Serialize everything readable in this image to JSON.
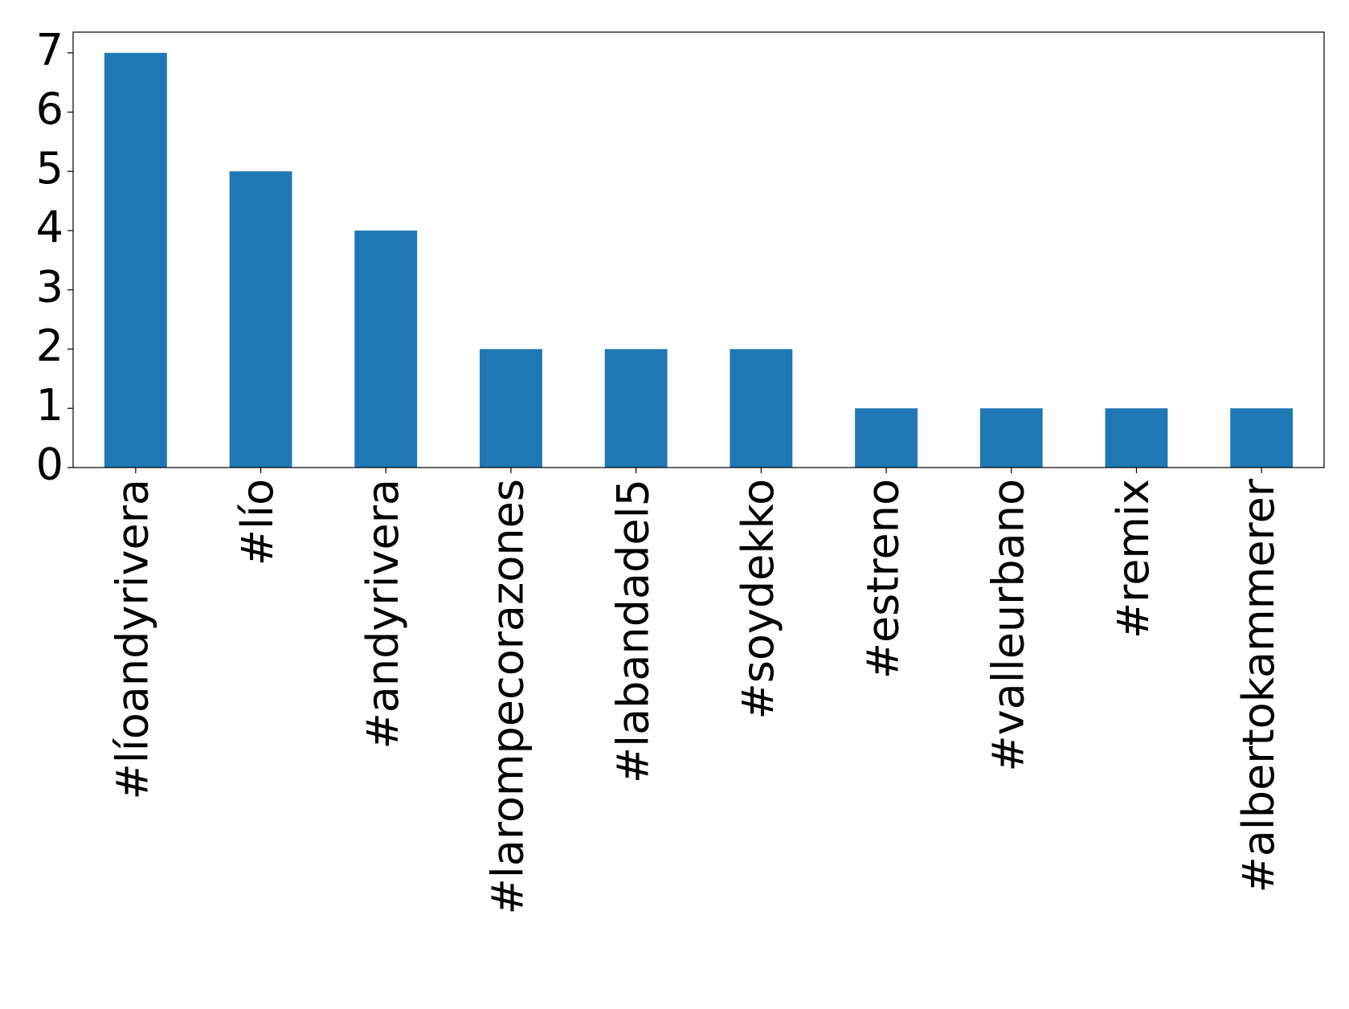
{
  "chart_data": {
    "type": "bar",
    "categories": [
      "#líoandyrivera",
      "#lío",
      "#andyrivera",
      "#larompecorazones",
      "#labandadel5",
      "#soydekko",
      "#estreno",
      "#valleurbano",
      "#remix",
      "#albertokammerer"
    ],
    "values": [
      7,
      5,
      4,
      2,
      2,
      2,
      1,
      1,
      1,
      1
    ],
    "color": "#1f77b4",
    "ylim": [
      0,
      7.35
    ],
    "yticks": [
      0,
      1,
      2,
      3,
      4,
      5,
      6,
      7
    ],
    "grid": false
  }
}
